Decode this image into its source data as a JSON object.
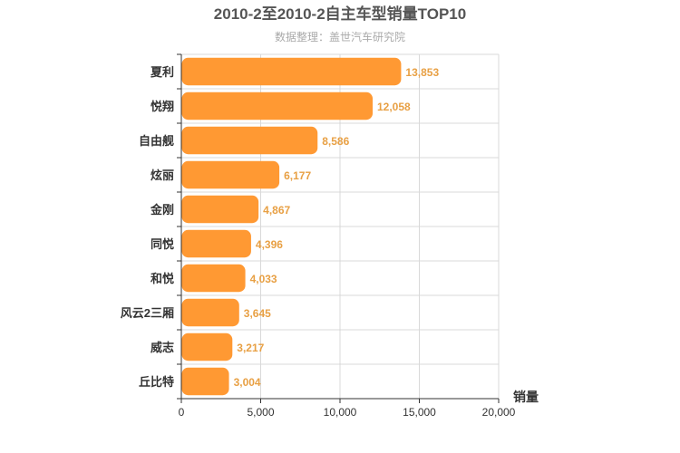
{
  "chart_data": {
    "type": "bar",
    "orientation": "horizontal",
    "title": "2010-2至2010-2自主车型销量TOP10",
    "subtitle": "数据整理：盖世汽车研究院",
    "categories": [
      "夏利",
      "悦翔",
      "自由舰",
      "炫丽",
      "金刚",
      "同悦",
      "和悦",
      "风云2三厢",
      "威志",
      "丘比特"
    ],
    "values": [
      13853,
      12058,
      8586,
      6177,
      4867,
      4396,
      4033,
      3645,
      3217,
      3004
    ],
    "data_labels": [
      "13,853",
      "12,058",
      "8,586",
      "6,177",
      "4,867",
      "4,396",
      "4,033",
      "3,645",
      "3,217",
      "3,004"
    ],
    "xlabel": "销量",
    "ylabel": "",
    "xlim": [
      0,
      20000
    ],
    "xticks": [
      0,
      5000,
      10000,
      15000,
      20000
    ],
    "xtick_labels": [
      "0",
      "5,000",
      "10,000",
      "15,000",
      "20,000"
    ],
    "grid": true,
    "bar_color": "#ff9933",
    "label_color": "#e8a044"
  }
}
